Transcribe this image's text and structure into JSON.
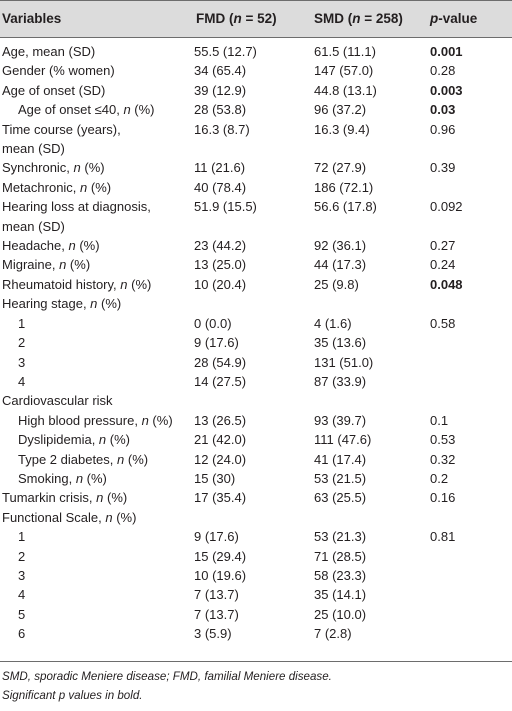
{
  "table": {
    "headers": {
      "variables": "Variables",
      "fmd_prefix": "FMD (",
      "fmd_n": "n",
      "fmd_suffix": " = 52)",
      "smd_prefix": "SMD (",
      "smd_n": "n",
      "smd_suffix": " = 258)",
      "p_prefix": "p",
      "p_suffix": "-value"
    },
    "rows": [
      {
        "label": "Age, mean (SD)",
        "fmd": "55.5 (12.7)",
        "smd": "61.5 (11.1)",
        "p": "0.001",
        "p_bold": true
      },
      {
        "label": "Gender (% women)",
        "fmd": "34 (65.4)",
        "smd": "147 (57.0)",
        "p": "0.28"
      },
      {
        "label": "Age of onset (SD)",
        "fmd": "39 (12.9)",
        "smd": "44.8 (13.1)",
        "p": "0.003",
        "p_bold": true
      },
      {
        "label": "Age of onset ≤40, n (%)",
        "fmd": "28 (53.8)",
        "smd": "96 (37.2)",
        "p": "0.03",
        "p_bold": true,
        "indent": true
      },
      {
        "label": "Time course (years),",
        "label2": "mean (SD)",
        "fmd": "16.3 (8.7)",
        "smd": "16.3 (9.4)",
        "p": "0.96"
      },
      {
        "label": "Synchronic, n (%)",
        "fmd": "11 (21.6)",
        "smd": "72 (27.9)",
        "p": "0.39"
      },
      {
        "label": "Metachronic, n (%)",
        "fmd": "40 (78.4)",
        "smd": "186 (72.1)",
        "p": ""
      },
      {
        "label": "Hearing loss at diagnosis,",
        "label2": "mean (SD)",
        "fmd": "51.9 (15.5)",
        "smd": "56.6 (17.8)",
        "p": "0.092"
      },
      {
        "label": "Headache, n (%)",
        "fmd": "23 (44.2)",
        "smd": "92 (36.1)",
        "p": "0.27"
      },
      {
        "label": "Migraine, n (%)",
        "fmd": "13 (25.0)",
        "smd": "44 (17.3)",
        "p": "0.24"
      },
      {
        "label": "Rheumatoid history, n (%)",
        "fmd": "10 (20.4)",
        "smd": "25 (9.8)",
        "p": "0.048",
        "p_bold": true
      },
      {
        "label": "Hearing stage, n (%)",
        "fmd": "",
        "smd": "",
        "p": ""
      },
      {
        "label": "1",
        "fmd": "0 (0.0)",
        "smd": "4 (1.6)",
        "p": "0.58",
        "indent": true
      },
      {
        "label": "2",
        "fmd": "9 (17.6)",
        "smd": "35 (13.6)",
        "p": "",
        "indent": true
      },
      {
        "label": "3",
        "fmd": "28 (54.9)",
        "smd": "131 (51.0)",
        "p": "",
        "indent": true
      },
      {
        "label": "4",
        "fmd": "14 (27.5)",
        "smd": "87 (33.9)",
        "p": "",
        "indent": true
      },
      {
        "label": "Cardiovascular risk",
        "fmd": "",
        "smd": "",
        "p": ""
      },
      {
        "label": "High blood pressure, n (%)",
        "fmd": "13 (26.5)",
        "smd": "93 (39.7)",
        "p": "0.1",
        "indent": true
      },
      {
        "label": "Dyslipidemia, n (%)",
        "fmd": "21 (42.0)",
        "smd": "111 (47.6)",
        "p": "0.53",
        "indent": true
      },
      {
        "label": "Type 2 diabetes, n (%)",
        "fmd": "12 (24.0)",
        "smd": "41 (17.4)",
        "p": "0.32",
        "indent": true
      },
      {
        "label": "Smoking, n (%)",
        "fmd": "15 (30)",
        "smd": "53 (21.5)",
        "p": "0.2",
        "indent": true
      },
      {
        "label": "Tumarkin crisis, n (%)",
        "fmd": "17 (35.4)",
        "smd": "63 (25.5)",
        "p": "0.16"
      },
      {
        "label": "Functional Scale, n (%)",
        "fmd": "",
        "smd": "",
        "p": ""
      },
      {
        "label": "1",
        "fmd": "9 (17.6)",
        "smd": "53 (21.3)",
        "p": "0.81",
        "indent": true
      },
      {
        "label": "2",
        "fmd": "15 (29.4)",
        "smd": "71 (28.5)",
        "p": "",
        "indent": true
      },
      {
        "label": "3",
        "fmd": "10 (19.6)",
        "smd": "58 (23.3)",
        "p": "",
        "indent": true
      },
      {
        "label": "4",
        "fmd": "7 (13.7)",
        "smd": "35 (14.1)",
        "p": "",
        "indent": true
      },
      {
        "label": "5",
        "fmd": "7 (13.7)",
        "smd": "25 (10.0)",
        "p": "",
        "indent": true
      },
      {
        "label": "6",
        "fmd": "3 (5.9)",
        "smd": "7 (2.8)",
        "p": "",
        "indent": true
      }
    ],
    "footnotes": [
      "SMD, sporadic Meniere disease; FMD, familial Meniere disease.",
      "Significant p values in bold."
    ]
  }
}
